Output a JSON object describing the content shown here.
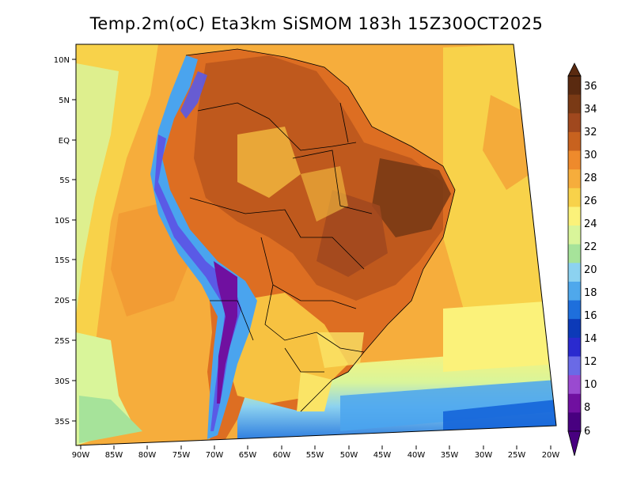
{
  "title": "Temp.2m(oC) Eta3km SiSMOM 183h 15Z30OCT2025",
  "lat_labels": [
    "10N",
    "5N",
    "EQ",
    "5S",
    "10S",
    "15S",
    "20S",
    "25S",
    "30S",
    "35S"
  ],
  "lon_labels": [
    "90W",
    "85W",
    "80W",
    "75W",
    "70W",
    "65W",
    "60W",
    "55W",
    "50W",
    "45W",
    "40W",
    "35W",
    "30W",
    "25W",
    "20W"
  ],
  "colorbar": {
    "labels": [
      "36",
      "34",
      "32",
      "30",
      "28",
      "26",
      "24",
      "22",
      "20",
      "18",
      "16",
      "14",
      "12",
      "10",
      "8",
      "6"
    ],
    "colors": [
      "#5a2a10",
      "#7a3a15",
      "#a0481e",
      "#c8621f",
      "#ee8a2c",
      "#f6ad3c",
      "#f8d24a",
      "#fbf27a",
      "#d9f59a",
      "#a6e39a",
      "#8cd2f0",
      "#4fa8ec",
      "#1e6fdc",
      "#0c3ab8",
      "#2a2acf",
      "#6a6ae6",
      "#9a4ad0",
      "#7010a0",
      "#480080"
    ]
  },
  "legend": {
    "temp_scale": [
      {
        "label": "36",
        "color": "#5a2a10"
      },
      {
        "label": "34",
        "color": "#8a3e16"
      },
      {
        "label": "32",
        "color": "#b4531c"
      },
      {
        "label": "30",
        "color": "#dd6e22"
      },
      {
        "label": "28",
        "color": "#f29a33"
      },
      {
        "label": "26",
        "color": "#f7c241"
      },
      {
        "label": "24",
        "color": "#fae466"
      },
      {
        "label": "22",
        "color": "#fcf99a"
      },
      {
        "label": "20",
        "color": "#c9f09c"
      },
      {
        "label": "18",
        "color": "#8ad6f2"
      },
      {
        "label": "16",
        "color": "#4aa4ee"
      },
      {
        "label": "14",
        "color": "#1565d9"
      },
      {
        "label": "12",
        "color": "#0a1ea8"
      },
      {
        "label": "10",
        "color": "#5a5ae6"
      },
      {
        "label": "8",
        "color": "#9b3fd0"
      },
      {
        "label": "6",
        "color": "#5b0089"
      }
    ]
  }
}
